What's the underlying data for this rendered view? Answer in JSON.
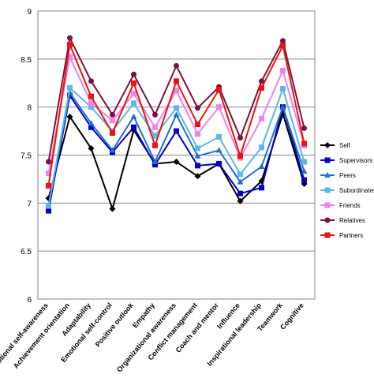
{
  "chart_data": {
    "type": "line",
    "title": "",
    "xlabel": "",
    "ylabel": "",
    "ylim": [
      6,
      9
    ],
    "yticks": [
      "6",
      "6.5",
      "7",
      "7.5",
      "8",
      "8.5",
      "9"
    ],
    "grid": "horizontal",
    "legend_position": "right",
    "categories": [
      "Emotional self-awareness",
      "Achievement orientation",
      "Adaptability",
      "Emotional self-control",
      "Positive outlook",
      "Empathy",
      "Organizational awareness",
      "Conflict management",
      "Coach and mentor",
      "Influence",
      "Inspirational leadership",
      "Teamwork",
      "Cognitive"
    ],
    "series": [
      {
        "name": "Self",
        "color": "#000000",
        "marker": "diamond",
        "values": [
          7.05,
          7.9,
          7.57,
          6.94,
          7.76,
          7.41,
          7.43,
          7.28,
          7.41,
          7.02,
          7.23,
          7.93,
          7.2
        ]
      },
      {
        "name": "Supervisors",
        "color": "#0000cc",
        "marker": "square",
        "values": [
          6.92,
          8.12,
          7.79,
          7.53,
          7.79,
          7.4,
          7.75,
          7.39,
          7.41,
          7.1,
          7.16,
          8.0,
          7.24
        ]
      },
      {
        "name": "Peers",
        "color": "#1f6fd6",
        "marker": "triangle",
        "values": [
          6.97,
          8.15,
          7.83,
          7.55,
          7.9,
          7.43,
          7.92,
          7.49,
          7.55,
          7.22,
          7.38,
          8.0,
          7.33
        ]
      },
      {
        "name": "Subordinates",
        "color": "#5bb8ea",
        "marker": "square",
        "values": [
          6.97,
          8.2,
          8.0,
          7.75,
          8.04,
          7.7,
          7.99,
          7.57,
          7.69,
          7.3,
          7.58,
          8.19,
          7.43
        ]
      },
      {
        "name": "Friends",
        "color": "#ee82ee",
        "marker": "square",
        "values": [
          7.31,
          8.52,
          8.04,
          7.86,
          8.14,
          7.79,
          8.17,
          7.72,
          8.0,
          7.47,
          7.88,
          8.38,
          7.6
        ]
      },
      {
        "name": "Relatives",
        "color": "#7a1143",
        "marker": "circle",
        "values": [
          7.43,
          8.72,
          8.27,
          7.92,
          8.34,
          7.92,
          8.43,
          7.99,
          8.21,
          7.68,
          8.27,
          8.69,
          7.78
        ]
      },
      {
        "name": "Partners",
        "color": "#ee1111",
        "marker": "square",
        "values": [
          7.18,
          8.65,
          8.11,
          7.73,
          8.25,
          7.6,
          8.27,
          7.82,
          8.18,
          7.49,
          8.2,
          8.64,
          7.62
        ]
      }
    ]
  }
}
